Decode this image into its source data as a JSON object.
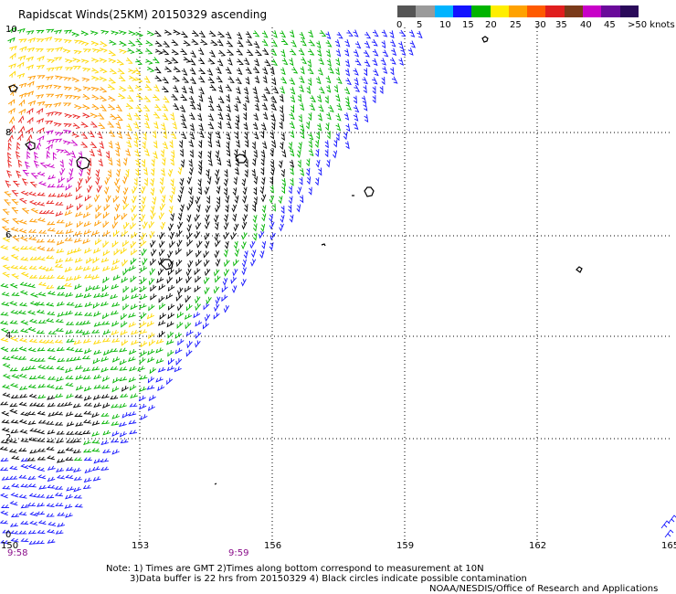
{
  "title": "Rapidscat Winds(25KM) 20150329 ascending",
  "legend": {
    "labels": [
      "0",
      "5",
      "10",
      "15",
      "20",
      "25",
      "30",
      "35",
      "40",
      "45",
      ">50 knots"
    ],
    "colors": [
      "#555555",
      "#9a9a9a",
      "#00b4ff",
      "#1414ff",
      "#00b400",
      "#ffee00",
      "#ffa200",
      "#ff5a00",
      "#e01e1e",
      "#7a3a1a",
      "#c800c8",
      "#6a0a9a",
      "#2a0a5a"
    ]
  },
  "axes": {
    "x_ticks": [
      "150",
      "153",
      "156",
      "159",
      "162",
      "165"
    ],
    "y_ticks": [
      "10",
      "8",
      "6",
      "4",
      "2",
      "0"
    ]
  },
  "times": [
    "9:58",
    "9:59"
  ],
  "notes": {
    "line1": "Note: 1) Times are GMT 2)Times along bottom correspond to measurement at 10N",
    "line2": "3)Data buffer is 22 hrs from 20150329 4) Black circles indicate possible contamination",
    "line3": "NOAA/NESDIS/Office of Research and Applications"
  }
}
